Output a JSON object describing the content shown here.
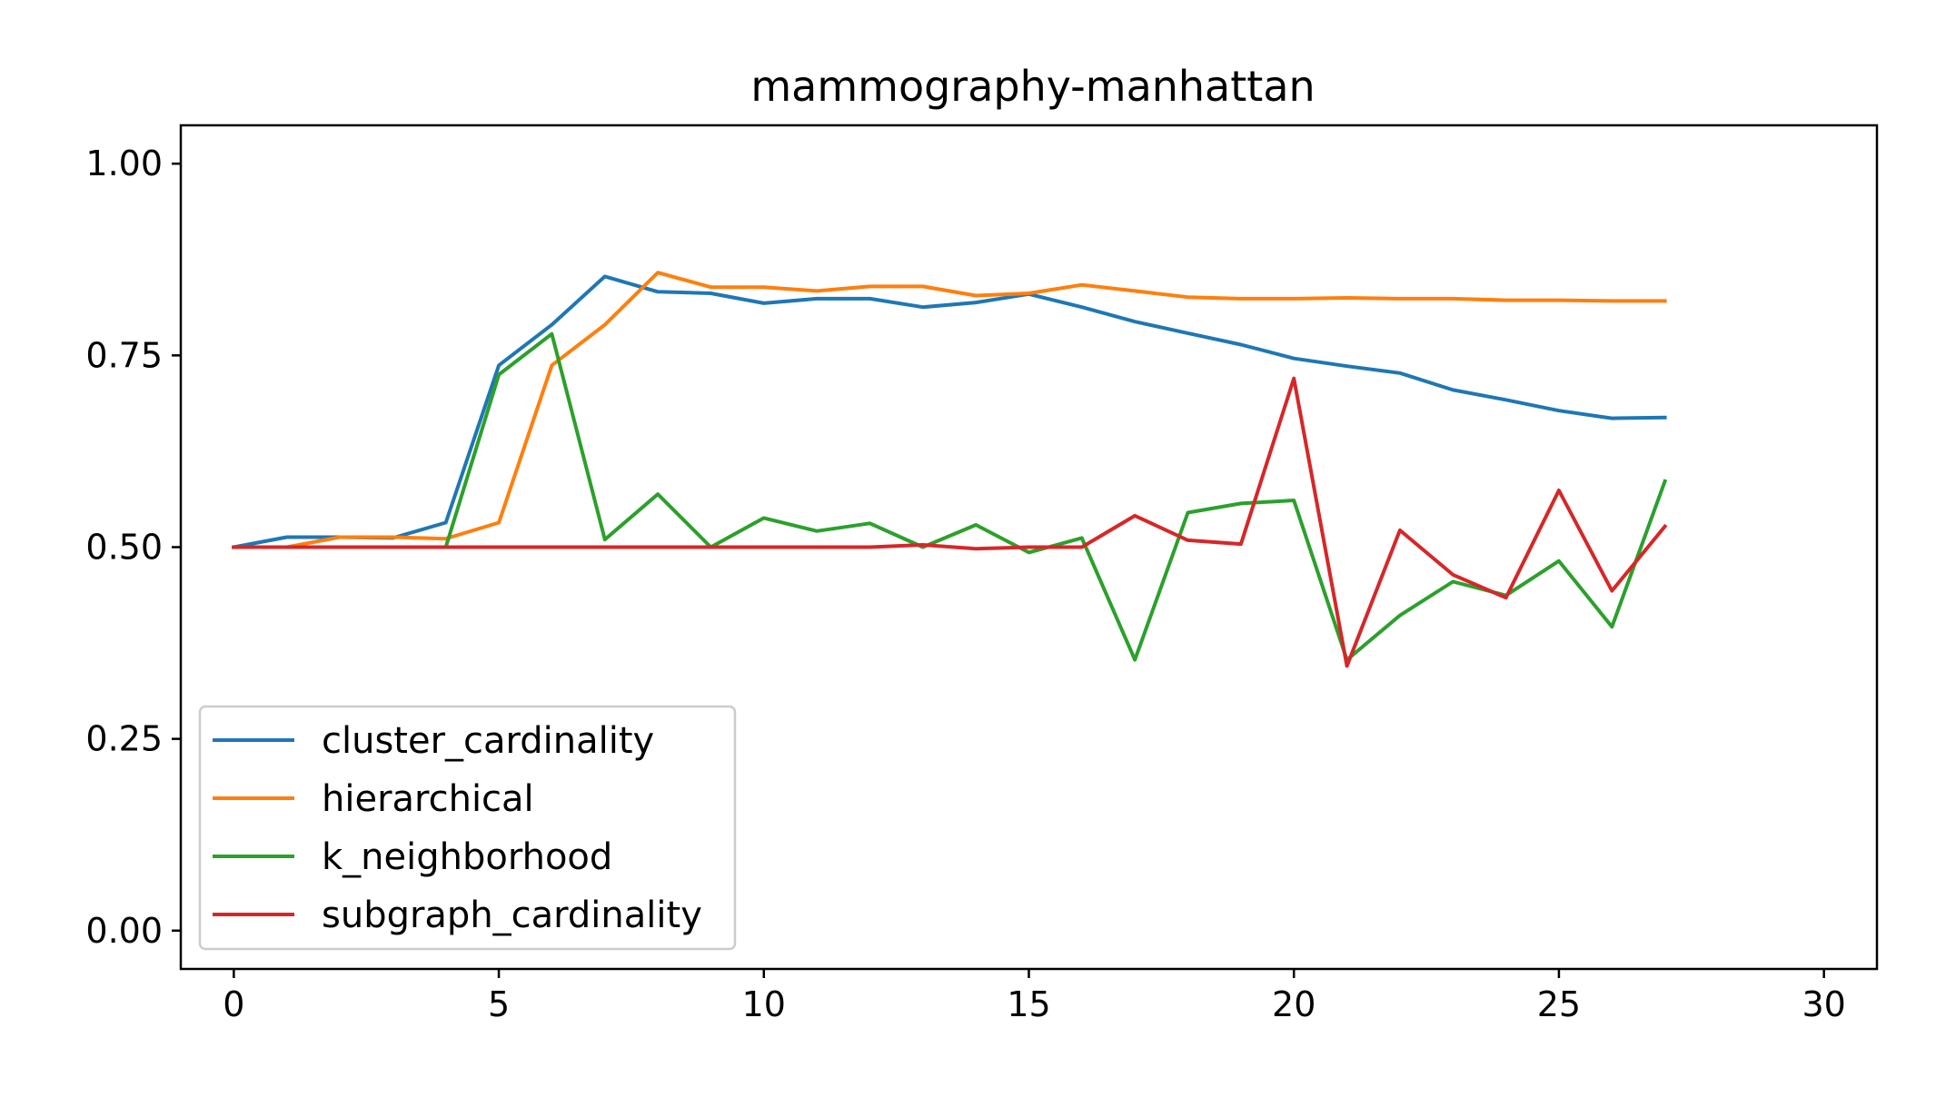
{
  "chart_data": {
    "type": "line",
    "title": "mammography-manhattan",
    "xlabel": "",
    "ylabel": "",
    "xlim": [
      -1,
      31
    ],
    "ylim": [
      -0.05,
      1.05
    ],
    "xticks": [
      0,
      5,
      10,
      15,
      20,
      25,
      30
    ],
    "xtick_labels": [
      "0",
      "5",
      "10",
      "15",
      "20",
      "25",
      "30"
    ],
    "yticks": [
      0.0,
      0.25,
      0.5,
      0.75,
      1.0
    ],
    "ytick_labels": [
      "0.00",
      "0.25",
      "0.50",
      "0.75",
      "1.00"
    ],
    "grid": false,
    "legend_position": "lower-left",
    "x": [
      0,
      1,
      2,
      3,
      4,
      5,
      6,
      7,
      8,
      9,
      10,
      11,
      12,
      13,
      14,
      15,
      16,
      17,
      18,
      19,
      20,
      21,
      22,
      23,
      24,
      25,
      26,
      27
    ],
    "series": [
      {
        "name": "cluster_cardinality",
        "color": "#1f77b4",
        "values": [
          0.5,
          0.513,
          0.513,
          0.512,
          0.532,
          0.737,
          0.79,
          0.853,
          0.833,
          0.831,
          0.818,
          0.824,
          0.824,
          0.813,
          0.819,
          0.83,
          0.813,
          0.794,
          0.779,
          0.764,
          0.746,
          0.736,
          0.727,
          0.705,
          0.692,
          0.678,
          0.668,
          0.669
        ]
      },
      {
        "name": "hierarchical",
        "color": "#ff7f0e",
        "values": [
          0.5,
          0.5,
          0.513,
          0.513,
          0.511,
          0.532,
          0.737,
          0.79,
          0.858,
          0.839,
          0.839,
          0.834,
          0.84,
          0.84,
          0.828,
          0.831,
          0.842,
          0.834,
          0.826,
          0.824,
          0.824,
          0.825,
          0.824,
          0.824,
          0.822,
          0.822,
          0.821,
          0.821
        ]
      },
      {
        "name": "k_neighborhood",
        "color": "#2ca02c",
        "values": [
          0.5,
          0.5,
          0.5,
          0.5,
          0.5,
          0.725,
          0.778,
          0.51,
          0.569,
          0.5,
          0.538,
          0.521,
          0.531,
          0.5,
          0.529,
          0.493,
          0.512,
          0.353,
          0.545,
          0.557,
          0.561,
          0.353,
          0.411,
          0.455,
          0.437,
          0.482,
          0.396,
          0.586
        ]
      },
      {
        "name": "subgraph_cardinality",
        "color": "#d62728",
        "values": [
          0.5,
          0.5,
          0.5,
          0.5,
          0.5,
          0.5,
          0.5,
          0.5,
          0.5,
          0.5,
          0.5,
          0.5,
          0.5,
          0.503,
          0.498,
          0.5,
          0.5,
          0.541,
          0.509,
          0.504,
          0.72,
          0.345,
          0.522,
          0.464,
          0.434,
          0.574,
          0.443,
          0.527
        ]
      }
    ]
  }
}
